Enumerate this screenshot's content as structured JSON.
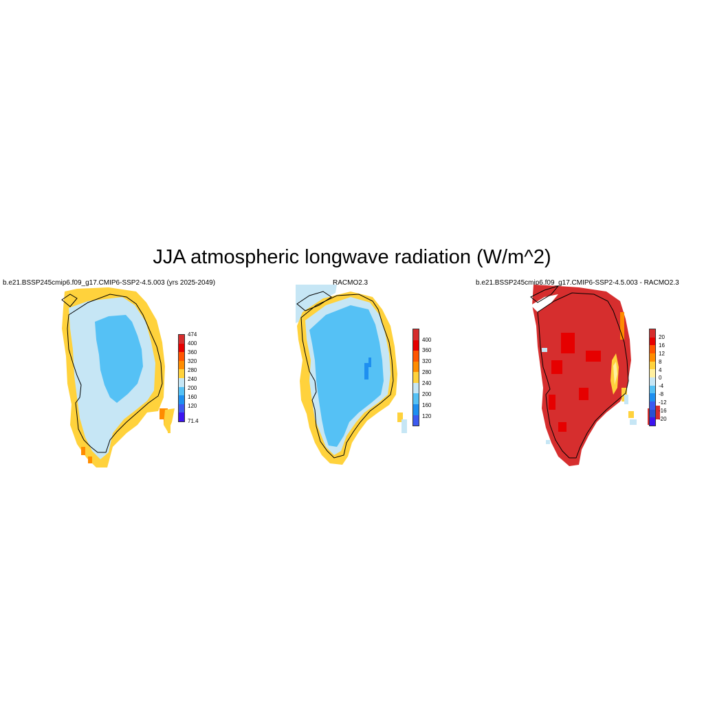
{
  "title": "JJA atmospheric longwave radiation (W/m^2)",
  "panels": [
    {
      "title": "b.e21.BSSP245cmip6.f09_g17.CMIP6-SSP2-4.5.003 (yrs 2025-2049)",
      "colorbar": {
        "labels": [
          "474",
          "400",
          "360",
          "320",
          "280",
          "240",
          "200",
          "160",
          "120",
          "71.4"
        ],
        "colors": [
          "#d62e2e",
          "#e60000",
          "#ff5500",
          "#ff8c00",
          "#ffd23c",
          "#c6e6f5",
          "#55c1f5",
          "#1e8ff0",
          "#3c5af0",
          "#3c14f0"
        ]
      }
    },
    {
      "title": "RACMO2.3",
      "colorbar": {
        "labels": [
          "400",
          "360",
          "320",
          "280",
          "240",
          "200",
          "160",
          "120"
        ],
        "colors": [
          "#d62e2e",
          "#e60000",
          "#ff5500",
          "#ff8c00",
          "#ffd23c",
          "#c6e6f5",
          "#55c1f5",
          "#1e8ff0",
          "#3c5af0",
          "#3c14f0"
        ]
      }
    },
    {
      "title": "b.e21.BSSP245cmip6.f09_g17.CMIP6-SSP2-4.5.003 - RACMO2.3",
      "colorbar": {
        "labels": [
          "20",
          "16",
          "12",
          "8",
          "4",
          "0",
          "-4",
          "-8",
          "-12",
          "-16",
          "-20"
        ],
        "colors": [
          "#d62e2e",
          "#e60000",
          "#ff5500",
          "#ff8c00",
          "#ffd23c",
          "#fff0a0",
          "#c6e6f5",
          "#55c1f5",
          "#1e8ff0",
          "#3c5af0",
          "#2850d2",
          "#3c14f0"
        ]
      }
    }
  ]
}
